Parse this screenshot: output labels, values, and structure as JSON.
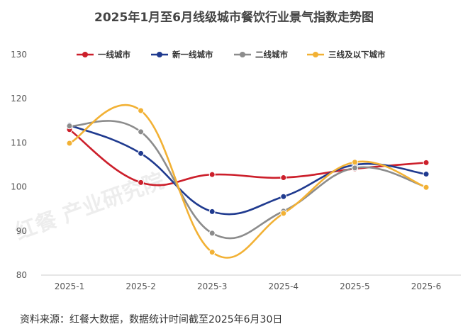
{
  "chart_data": {
    "type": "line",
    "title": "2025年1月至6月线级城市餐饮行业景气指数走势图",
    "categories": [
      "2025-1",
      "2025-2",
      "2025-3",
      "2025-4",
      "2025-5",
      "2025-6"
    ],
    "series": [
      {
        "name": "一线城市",
        "color": "#cc1f2b",
        "values": [
          113.0,
          101.0,
          102.8,
          102.1,
          104.1,
          105.5
        ]
      },
      {
        "name": "新一线城市",
        "color": "#1f3a8f",
        "values": [
          114.0,
          107.6,
          94.4,
          97.8,
          105.0,
          102.9
        ]
      },
      {
        "name": "二线城市",
        "color": "#8c8c8c",
        "values": [
          113.8,
          112.5,
          89.5,
          94.5,
          104.3,
          100.0
        ]
      },
      {
        "name": "三线及以下城市",
        "color": "#f2b134",
        "values": [
          109.9,
          117.3,
          85.2,
          94.0,
          105.6,
          99.9
        ]
      }
    ],
    "ylim": [
      80,
      130
    ],
    "yticks": [
      80,
      90,
      100,
      110,
      120,
      130
    ],
    "grid": false,
    "legend_position": "top"
  },
  "source": "资料来源：红餐大数据，数据统计时间截至2025年6月30日",
  "watermark": "红餐 产业研究院"
}
